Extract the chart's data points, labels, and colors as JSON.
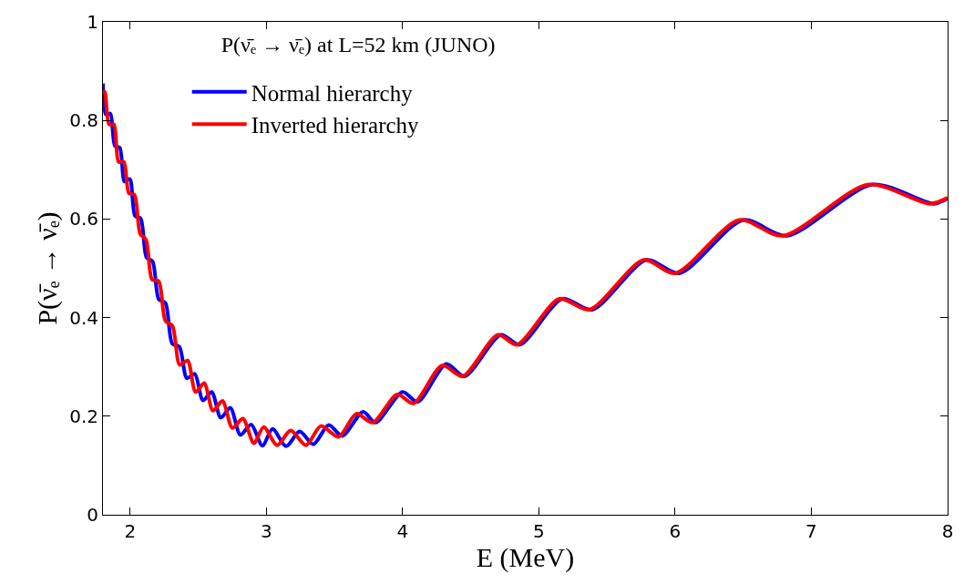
{
  "chart_data": {
    "type": "line",
    "title": "P(ν̄ₑ → ν̄ₑ) at L=52 km (JUNO)",
    "xlabel": "E (MeV)",
    "ylabel": "P(ν̄ₑ → ν̄ₑ)",
    "xlim": [
      1.8,
      8
    ],
    "xticks": [
      2,
      3,
      4,
      5,
      6,
      7,
      8
    ],
    "ylim": [
      0,
      1
    ],
    "yticks": [
      0,
      0.2,
      0.4,
      0.6,
      0.8,
      1
    ],
    "legend": "top left",
    "marker": "none",
    "line_style": "solid",
    "series": [
      {
        "name": "Normal hierarchy",
        "color": "#0000ff",
        "x": [
          1.8,
          1.822,
          1.854,
          1.888,
          1.923,
          1.959,
          1.997,
          2.036,
          2.077,
          2.12,
          2.164,
          2.21,
          2.258,
          2.309,
          2.361,
          2.416,
          2.474,
          2.534,
          2.598,
          2.665,
          2.735,
          2.809,
          2.888,
          2.97,
          3.045,
          3.144,
          3.244,
          3.344,
          3.457,
          3.557,
          3.71,
          3.8,
          4.0,
          4.11,
          4.32,
          4.455,
          4.72,
          4.86,
          5.17,
          5.39,
          5.79,
          6.03,
          6.5,
          6.82,
          7.45,
          7.9,
          8.0
        ],
        "values": [
          0.875,
          0.812,
          0.814,
          0.748,
          0.745,
          0.676,
          0.681,
          0.606,
          0.601,
          0.522,
          0.514,
          0.437,
          0.43,
          0.347,
          0.341,
          0.277,
          0.286,
          0.232,
          0.249,
          0.197,
          0.217,
          0.162,
          0.183,
          0.14,
          0.174,
          0.139,
          0.169,
          0.143,
          0.182,
          0.16,
          0.209,
          0.187,
          0.249,
          0.229,
          0.306,
          0.281,
          0.365,
          0.345,
          0.438,
          0.416,
          0.517,
          0.49,
          0.598,
          0.566,
          0.67,
          0.631,
          0.642
        ]
      },
      {
        "name": "Inverted hierarchy",
        "color": "#ff0000",
        "x": [
          1.8,
          1.813,
          1.845,
          1.88,
          1.915,
          1.953,
          1.991,
          2.031,
          2.073,
          2.116,
          2.161,
          2.209,
          2.258,
          2.31,
          2.364,
          2.421,
          2.48,
          2.543,
          2.608,
          2.677,
          2.75,
          2.827,
          2.908,
          2.98,
          3.078,
          3.178,
          3.29,
          3.4,
          3.53,
          3.66,
          3.78,
          3.96,
          4.08,
          4.29,
          4.44,
          4.7,
          4.84,
          5.15,
          5.37,
          5.77,
          6.0,
          6.47,
          6.79,
          7.42,
          7.87,
          8.0
        ],
        "values": [
          0.855,
          0.858,
          0.792,
          0.792,
          0.716,
          0.716,
          0.652,
          0.649,
          0.57,
          0.558,
          0.477,
          0.474,
          0.394,
          0.383,
          0.304,
          0.313,
          0.249,
          0.267,
          0.211,
          0.231,
          0.176,
          0.195,
          0.145,
          0.178,
          0.141,
          0.171,
          0.141,
          0.18,
          0.158,
          0.205,
          0.187,
          0.244,
          0.226,
          0.303,
          0.281,
          0.365,
          0.345,
          0.438,
          0.416,
          0.517,
          0.49,
          0.598,
          0.566,
          0.67,
          0.631,
          0.643
        ]
      }
    ]
  }
}
